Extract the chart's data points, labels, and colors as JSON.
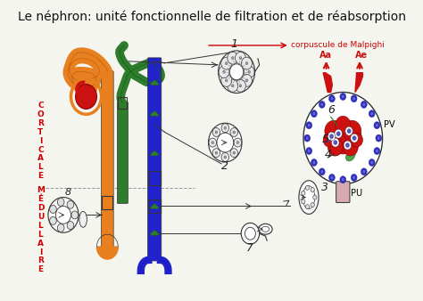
{
  "title": "Le néphron: unité fonctionnelle de filtration et de réabsorption",
  "title_fontsize": 10,
  "title_color": "#111111",
  "bg_color": "#f5f5f0",
  "left_label_corticale": [
    "C",
    "O",
    "R",
    "T",
    "I",
    "C",
    "A",
    "L",
    "E"
  ],
  "left_label_medullaire": [
    "M",
    "É",
    "D",
    "U",
    "L",
    "L",
    "A",
    "I",
    "R",
    "E"
  ],
  "left_label_color": "#cc0000",
  "corpuscule_label": "corpuscule de Malpighi",
  "corpuscule_label_color": "#cc0000",
  "label_Aa": "Aa",
  "label_Ae": "Ae",
  "label_PV": "PV",
  "label_PU": "PU",
  "orange_color": "#e88020",
  "green_color": "#2d7d2d",
  "blue_color": "#2222cc",
  "red_color": "#cc1111",
  "pink_color": "#d4aab0",
  "arrow_color": "#cc0000",
  "dashed_color": "#999999",
  "line_color": "#333333"
}
